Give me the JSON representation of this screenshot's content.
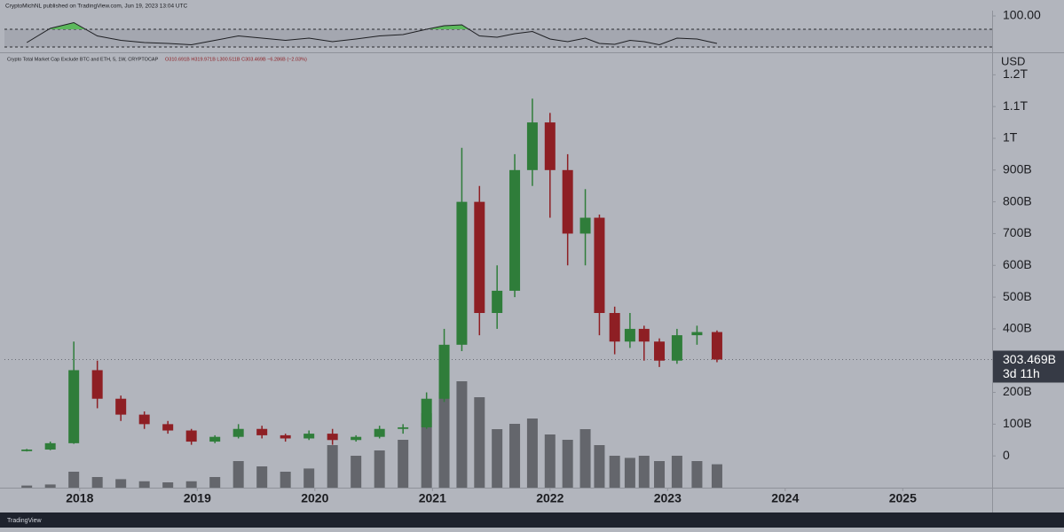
{
  "header": {
    "text": "CryptoMichNL published on TradingView.com, Jun 19, 2023 13:04 UTC"
  },
  "footer": {
    "logo": "TradingView"
  },
  "chart_data": {
    "type": "candlestick",
    "legend_text": "Crypto Total Market Cap Exclude BTC and ETH, 5, 1W, CRYPTOCAP",
    "ohlc_text": "O310.691B H319.971B L300.511B C303.469B −6.286B (−2.03%)",
    "currency": "USD",
    "x": [
      2017.55,
      2017.75,
      2017.95,
      2018.15,
      2018.35,
      2018.55,
      2018.75,
      2018.95,
      2019.15,
      2019.35,
      2019.55,
      2019.75,
      2019.95,
      2020.15,
      2020.35,
      2020.55,
      2020.75,
      2020.95,
      2021.1,
      2021.25,
      2021.4,
      2021.55,
      2021.7,
      2021.85,
      2022.0,
      2022.15,
      2022.3,
      2022.42,
      2022.55,
      2022.68,
      2022.8,
      2022.93,
      2023.08,
      2023.25,
      2023.42
    ],
    "open": [
      15,
      20,
      40,
      270,
      180,
      130,
      100,
      80,
      45,
      60,
      85,
      65,
      55,
      70,
      50,
      60,
      85,
      90,
      180,
      350,
      800,
      450,
      520,
      900,
      1050,
      900,
      700,
      750,
      450,
      360,
      400,
      360,
      300,
      380,
      390
    ],
    "high": [
      22,
      45,
      360,
      300,
      190,
      140,
      110,
      85,
      65,
      100,
      95,
      70,
      80,
      85,
      65,
      95,
      100,
      200,
      400,
      970,
      850,
      600,
      950,
      1125,
      1080,
      950,
      840,
      760,
      470,
      450,
      410,
      370,
      400,
      410,
      395
    ],
    "low": [
      14,
      18,
      38,
      150,
      110,
      85,
      70,
      35,
      40,
      55,
      55,
      45,
      50,
      35,
      45,
      55,
      70,
      85,
      170,
      330,
      380,
      400,
      500,
      850,
      750,
      600,
      600,
      380,
      320,
      340,
      300,
      280,
      290,
      350,
      295
    ],
    "close": [
      20,
      40,
      270,
      180,
      130,
      100,
      80,
      45,
      60,
      85,
      65,
      55,
      70,
      50,
      60,
      85,
      90,
      180,
      350,
      800,
      450,
      520,
      900,
      1050,
      900,
      700,
      750,
      450,
      360,
      400,
      360,
      300,
      380,
      390,
      303.469
    ],
    "volume": [
      2,
      3,
      15,
      10,
      8,
      6,
      5,
      6,
      10,
      25,
      20,
      15,
      18,
      40,
      30,
      35,
      45,
      70,
      90,
      100,
      85,
      55,
      60,
      65,
      50,
      45,
      55,
      40,
      30,
      28,
      30,
      25,
      30,
      25,
      22
    ],
    "up_color": "#2f7d3a",
    "down_color": "#8e1f24",
    "volume_color": "#4a4c52",
    "xlim": [
      2017.36,
      2025.76
    ],
    "xticks": [
      2018,
      2019,
      2020,
      2021,
      2022,
      2023,
      2024,
      2025
    ],
    "ylim": [
      -100,
      1268
    ],
    "yticks": [
      0,
      {
        "value": 100,
        "label": "100B"
      },
      {
        "value": 200,
        "label": "200B"
      },
      {
        "value": 400,
        "label": "400B"
      },
      {
        "value": 500,
        "label": "500B"
      },
      {
        "value": 600,
        "label": "600B"
      },
      {
        "value": 700,
        "label": "700B"
      },
      {
        "value": 800,
        "label": "800B"
      },
      {
        "value": 900,
        "label": "900B"
      },
      {
        "value": 1000,
        "label": "1T"
      },
      {
        "value": 1100,
        "label": "1.1T"
      },
      {
        "value": 1200,
        "label": "1.2T"
      }
    ],
    "last_price": {
      "value": 303.469,
      "label": "303.469B"
    },
    "countdown": "3d 11h",
    "rsi": {
      "values": [
        40,
        72,
        85,
        55,
        45,
        40,
        38,
        35,
        45,
        55,
        50,
        45,
        50,
        42,
        48,
        55,
        58,
        70,
        78,
        80,
        55,
        52,
        60,
        65,
        48,
        42,
        50,
        38,
        36,
        45,
        42,
        35,
        50,
        48,
        38
      ],
      "ylim": [
        20,
        112
      ],
      "yticks": [
        {
          "value": 100,
          "label": "100.00"
        }
      ],
      "bands": [
        30,
        70
      ],
      "color": "#1e1f23",
      "overbought_color": "#5cb85c"
    }
  }
}
